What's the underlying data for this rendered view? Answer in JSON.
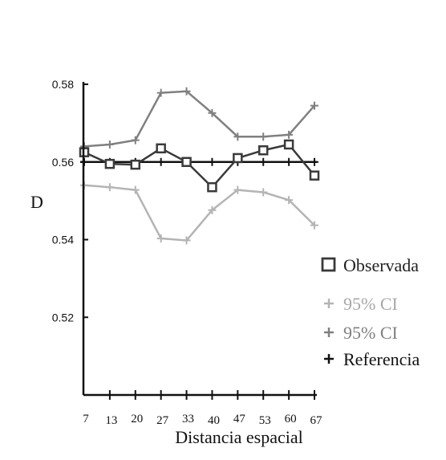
{
  "chart_data": {
    "type": "line",
    "title": "",
    "xlabel": "Distancia espacial",
    "ylabel": "D",
    "categories": [
      "7",
      "13",
      "20",
      "27",
      "33",
      "40",
      "47",
      "53",
      "60",
      "67"
    ],
    "yticks": [
      "0.52",
      "0.54",
      "0.56",
      "0.58"
    ],
    "ylim": [
      0.5,
      0.58
    ],
    "grid": false,
    "legend_position": "right",
    "series": [
      {
        "name": "Observada",
        "marker": "square",
        "color": "#3a3a3a",
        "values": [
          0.5625,
          0.5595,
          0.5593,
          0.5635,
          0.56,
          0.5535,
          0.561,
          0.563,
          0.5645,
          0.5565
        ]
      },
      {
        "name": "95% CI",
        "marker": "plus",
        "color": "#b4b4b4",
        "values": [
          0.554,
          0.5535,
          0.5528,
          0.5403,
          0.5398,
          0.5476,
          0.5528,
          0.5522,
          0.5502,
          0.5437
        ]
      },
      {
        "name": "95% CI",
        "marker": "plus",
        "color": "#808080",
        "values": [
          0.564,
          0.5645,
          0.5656,
          0.5778,
          0.5782,
          0.5726,
          0.5665,
          0.5665,
          0.567,
          0.5745
        ]
      },
      {
        "name": "Referencia",
        "marker": "plus",
        "color": "#111111",
        "values": [
          0.56,
          0.56,
          0.56,
          0.56,
          0.56,
          0.56,
          0.56,
          0.56,
          0.56,
          0.56
        ]
      }
    ]
  }
}
